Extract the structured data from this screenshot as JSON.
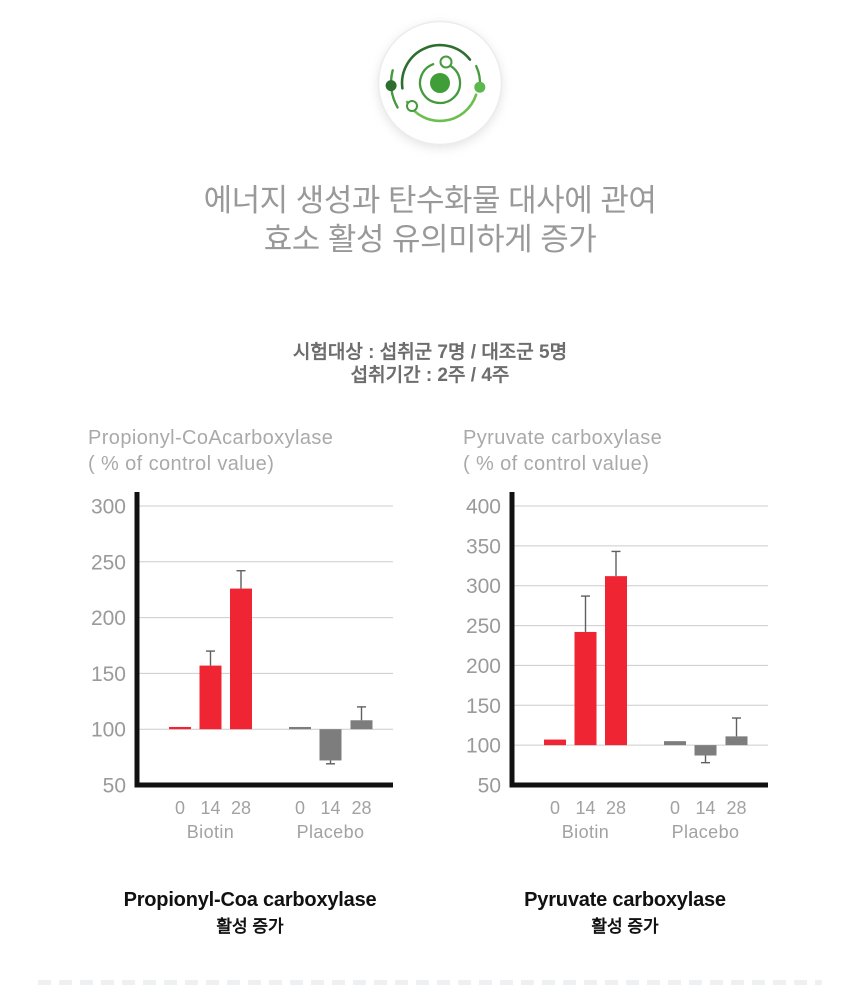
{
  "header": {
    "title_line1": "에너지 생성과 탄수화물 대사에 관여",
    "title_line2": "효소 활성 유의미하게 증가",
    "study_subjects": "시험대상 : 섭취군 7명 / 대조군 5명",
    "study_period": "섭취기간 : 2주 / 4주"
  },
  "colors": {
    "biotin_bar": "#f02533",
    "placebo_bar": "#7d7d7d",
    "axis": "#111111",
    "grid": "#cccccc",
    "tick_text": "#9a9a9a",
    "error_bar": "#5f5f5f",
    "title_text": "#999999",
    "subtitle_text": "#6d6d6d",
    "chart_title_text": "#a9a9a9",
    "caption_text": "#111111",
    "icon_green_dark": "#2e6f30",
    "icon_green_mid": "#449a3c",
    "icon_green_light": "#5cb84e"
  },
  "chart_data": [
    {
      "type": "bar",
      "title": "Propionyl-CoAcarboxylase",
      "unit_label": "( % of control value)",
      "caption": "Propionyl-Coa carboxylase",
      "caption_sub": "활성 증가",
      "ylim": [
        50,
        300
      ],
      "ytick_step": 50,
      "baseline": 100,
      "grid": true,
      "legend_position": "none",
      "xlabel_groups": [
        {
          "label": "Biotin",
          "ticks": [
            "0",
            "14",
            "28"
          ]
        },
        {
          "label": "Placebo",
          "ticks": [
            "0",
            "14",
            "28"
          ]
        }
      ],
      "series": [
        {
          "name": "Biotin",
          "color_key": "biotin_bar",
          "x": [
            "0",
            "14",
            "28"
          ],
          "values": [
            102,
            157,
            226
          ],
          "errors": [
            0,
            13,
            16
          ]
        },
        {
          "name": "Placebo",
          "color_key": "placebo_bar",
          "x": [
            "0",
            "14",
            "28"
          ],
          "values": [
            102,
            72,
            108
          ],
          "errors": [
            0,
            3,
            12
          ]
        }
      ]
    },
    {
      "type": "bar",
      "title": "Pyruvate carboxylase",
      "unit_label": "( % of control value)",
      "caption": "Pyruvate carboxylase",
      "caption_sub": "활성 증가",
      "ylim": [
        50,
        400
      ],
      "ytick_step": 50,
      "baseline": 100,
      "grid": true,
      "legend_position": "none",
      "xlabel_groups": [
        {
          "label": "Biotin",
          "ticks": [
            "0",
            "14",
            "28"
          ]
        },
        {
          "label": "Placebo",
          "ticks": [
            "0",
            "14",
            "28"
          ]
        }
      ],
      "series": [
        {
          "name": "Biotin",
          "color_key": "biotin_bar",
          "x": [
            "0",
            "14",
            "28"
          ],
          "values": [
            107,
            242,
            312
          ],
          "errors": [
            0,
            45,
            31
          ]
        },
        {
          "name": "Placebo",
          "color_key": "placebo_bar",
          "x": [
            "0",
            "14",
            "28"
          ],
          "values": [
            105,
            87,
            111
          ],
          "errors": [
            0,
            9,
            23
          ]
        }
      ]
    }
  ]
}
